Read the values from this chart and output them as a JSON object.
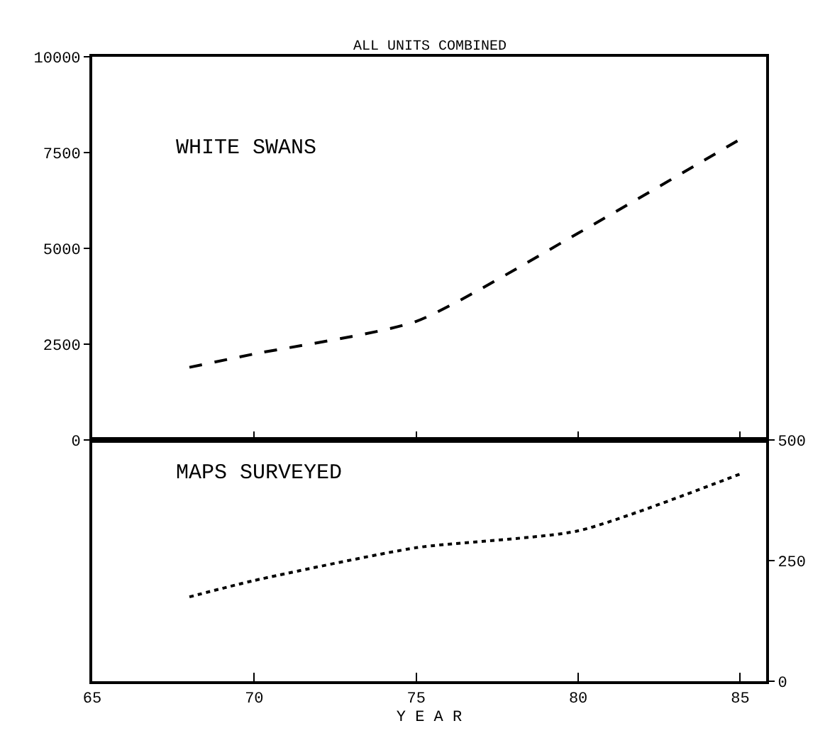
{
  "chart_data": [
    {
      "type": "line",
      "title": "ALL UNITS COMBINED",
      "x": [
        68,
        70,
        75,
        80,
        85
      ],
      "xlim": [
        65,
        85.8
      ],
      "xticks": [
        65,
        70,
        75,
        80,
        85
      ],
      "ylim": [
        0,
        10000
      ],
      "yticks": [
        0,
        2500,
        5000,
        7500,
        10000
      ],
      "tick_labels": "y",
      "grid": false,
      "series": [
        {
          "name": "WHITE SWANS",
          "color": "#000000",
          "line_style": "dashed",
          "values": [
            1900,
            2250,
            3100,
            5400,
            7850
          ]
        }
      ]
    },
    {
      "type": "line",
      "xlabel": "Y E A R",
      "x": [
        68,
        70,
        75,
        80,
        85
      ],
      "xlim": [
        65,
        85.8
      ],
      "xticks": [
        65,
        70,
        75,
        80,
        85
      ],
      "ylim": [
        0,
        500
      ],
      "yticks": [
        0,
        250,
        500
      ],
      "grid": false,
      "series": [
        {
          "name": "MAPS SURVEYED",
          "color": "#000000",
          "line_style": "dotted",
          "values": [
            175,
            209,
            277,
            312,
            430
          ]
        }
      ]
    }
  ]
}
